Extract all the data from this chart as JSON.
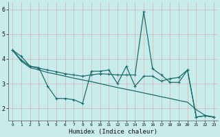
{
  "xlabel": "Humidex (Indice chaleur)",
  "xlim": [
    -0.5,
    23.5
  ],
  "ylim": [
    1.5,
    6.3
  ],
  "yticks": [
    2,
    3,
    4,
    5,
    6
  ],
  "xticks": [
    0,
    1,
    2,
    3,
    4,
    5,
    6,
    7,
    8,
    9,
    10,
    11,
    12,
    13,
    14,
    15,
    16,
    17,
    18,
    19,
    20,
    21,
    22,
    23
  ],
  "bg_color": "#c8ecec",
  "line_color": "#1a6b6b",
  "grid_color": "#b0d8d8",
  "line1": [
    4.35,
    4.1,
    3.7,
    3.65,
    2.9,
    2.4,
    2.4,
    2.35,
    2.2,
    3.5,
    3.5,
    3.55,
    3.0,
    3.7,
    2.9,
    3.3,
    3.3,
    3.1,
    3.2,
    3.25,
    3.55,
    1.65,
    1.7,
    1.65
  ],
  "line2": [
    4.35,
    3.9,
    3.65,
    3.55,
    3.45,
    3.38,
    3.3,
    3.22,
    3.15,
    3.08,
    3.0,
    2.92,
    2.84,
    2.77,
    2.7,
    2.62,
    2.55,
    2.47,
    2.4,
    2.32,
    2.25,
    1.95,
    1.72,
    1.65
  ],
  "line3": [
    4.35,
    3.95,
    3.7,
    3.62,
    3.55,
    3.48,
    3.4,
    3.35,
    3.3,
    3.35,
    3.4,
    3.38,
    3.35,
    3.35,
    3.35,
    5.9,
    3.6,
    3.35,
    3.05,
    3.05,
    3.55,
    1.65,
    1.7,
    1.65
  ]
}
